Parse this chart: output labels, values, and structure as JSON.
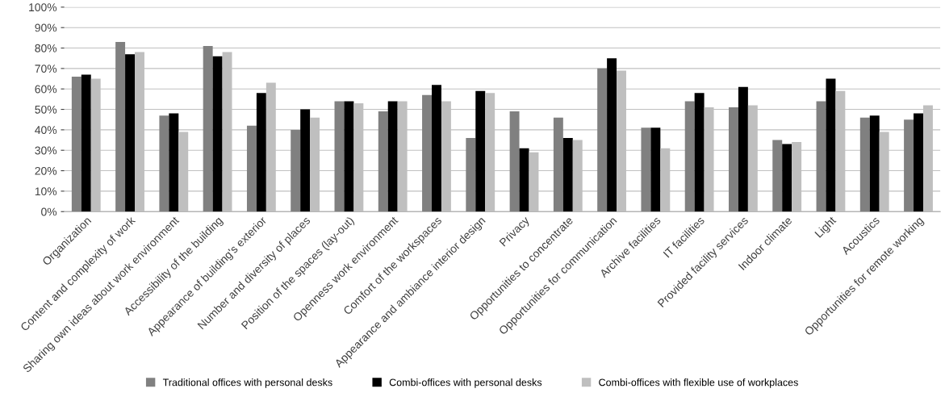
{
  "chart_data": {
    "type": "bar",
    "categories": [
      "Organization",
      "Content and complexity of work",
      "Sharing own ideas about work environment",
      "Accessibility of the building",
      "Appearance of building's exterior",
      "Number and diversity of places",
      "Position of the spaces (lay-out)",
      "Openness work environment",
      "Comfort of the workspaces",
      "Appearance and ambiance interior design",
      "Privacy",
      "Opportunities to concentrate",
      "Opportunities for communication",
      "Archive facilities",
      "IT facilities",
      "Provided facility services",
      "Indoor climate",
      "Light",
      "Acoustics",
      "Opportunities for remote working"
    ],
    "series": [
      {
        "name": "Traditional offices with personal desks",
        "color": "#808080",
        "values": [
          66,
          83,
          47,
          81,
          42,
          40,
          54,
          49,
          57,
          36,
          49,
          46,
          70,
          41,
          54,
          51,
          35,
          54,
          46,
          45
        ]
      },
      {
        "name": "Combi-offices with personal desks",
        "color": "#000000",
        "values": [
          67,
          77,
          48,
          76,
          58,
          50,
          54,
          54,
          62,
          59,
          31,
          36,
          75,
          41,
          58,
          61,
          33,
          65,
          47,
          48
        ]
      },
      {
        "name": "Combi-offices with flexible use of workplaces",
        "color": "#bfbfbf",
        "values": [
          65,
          78,
          39,
          78,
          63,
          46,
          53,
          54,
          54,
          58,
          29,
          35,
          69,
          31,
          51,
          52,
          34,
          59,
          39,
          52
        ]
      }
    ],
    "ylim": [
      0,
      100
    ],
    "yticks": [
      {
        "value": 0,
        "label": "0%"
      },
      {
        "value": 10,
        "label": "10%"
      },
      {
        "value": 20,
        "label": "20%"
      },
      {
        "value": 30,
        "label": "30%"
      },
      {
        "value": 40,
        "label": "40%"
      },
      {
        "value": 50,
        "label": "50%"
      },
      {
        "value": 60,
        "label": "60%"
      },
      {
        "value": 70,
        "label": "70%"
      },
      {
        "value": 80,
        "label": "80%"
      },
      {
        "value": 90,
        "label": "90%"
      },
      {
        "value": 100,
        "label": "100%"
      }
    ],
    "grid": "y",
    "legend": "bottom"
  }
}
